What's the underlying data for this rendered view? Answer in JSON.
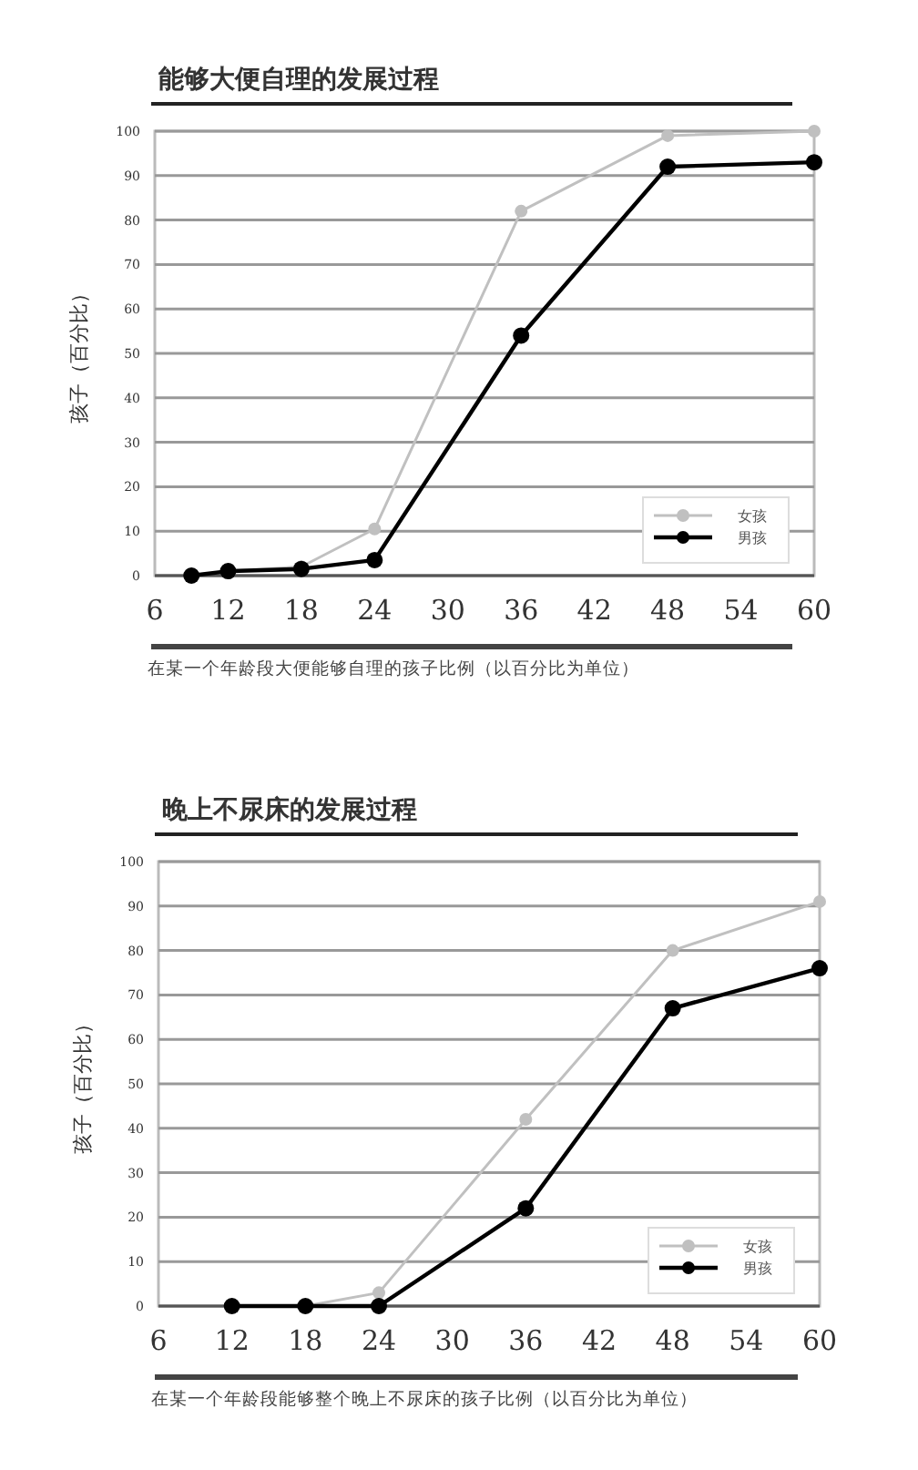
{
  "chart_data": [
    {
      "type": "line",
      "title": "能够大便自理的发展过程",
      "xlabel": "在某一个年龄段大便能够自理的孩子比例（以百分比为单位）",
      "ylabel": "孩子（百分比）",
      "xlim": [
        6,
        60
      ],
      "xticks": [
        6,
        12,
        18,
        24,
        30,
        36,
        42,
        48,
        54,
        60
      ],
      "ylim": [
        0,
        100
      ],
      "yticks": [
        0,
        10,
        20,
        30,
        40,
        50,
        60,
        70,
        80,
        90,
        100
      ],
      "grid": "y",
      "legend": "bottom right",
      "marker": "circle",
      "series": [
        {
          "name": "女孩",
          "color": "#c0c0c0",
          "x": [
            9,
            12,
            18,
            24,
            36,
            48,
            60
          ],
          "values": [
            0,
            1,
            2,
            10.5,
            82,
            99,
            100
          ]
        },
        {
          "name": "男孩",
          "color": "#000000",
          "x": [
            9,
            12,
            18,
            24,
            36,
            48,
            60
          ],
          "values": [
            0,
            1,
            1.5,
            3.5,
            54,
            92,
            93
          ]
        }
      ]
    },
    {
      "type": "line",
      "title": "晚上不尿床的发展过程",
      "xlabel": "在某一个年龄段能够整个晚上不尿床的孩子比例（以百分比为单位）",
      "ylabel": "孩子（百分比）",
      "xlim": [
        6,
        60
      ],
      "xticks": [
        6,
        12,
        18,
        24,
        30,
        36,
        42,
        48,
        54,
        60
      ],
      "ylim": [
        0,
        100
      ],
      "yticks": [
        0,
        10,
        20,
        30,
        40,
        50,
        60,
        70,
        80,
        90,
        100
      ],
      "grid": "y",
      "legend": "bottom right",
      "marker": "circle",
      "series": [
        {
          "name": "女孩",
          "color": "#c0c0c0",
          "x": [
            12,
            18,
            24,
            36,
            48,
            60
          ],
          "values": [
            0,
            0,
            3,
            42,
            80,
            91
          ]
        },
        {
          "name": "男孩",
          "color": "#000000",
          "x": [
            12,
            18,
            24,
            36,
            48,
            60
          ],
          "values": [
            0,
            0,
            0,
            22,
            67,
            76
          ]
        }
      ]
    }
  ]
}
